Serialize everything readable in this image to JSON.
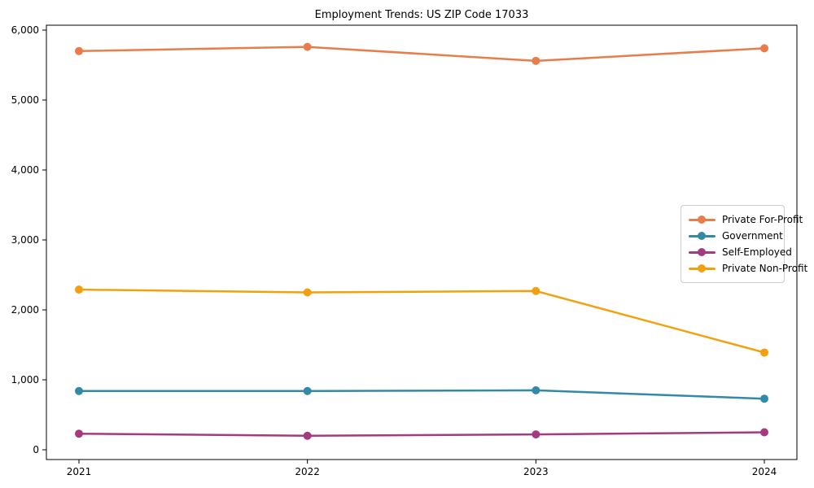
{
  "figure": {
    "title": "Employment Trends: US ZIP Code 17033"
  },
  "chart_data": {
    "type": "line",
    "title": "Employment Trends: US ZIP Code 17033",
    "xlabel": "",
    "ylabel": "",
    "x": [
      2021,
      2022,
      2023,
      2024
    ],
    "x_tick_labels": [
      "2021",
      "2022",
      "2023",
      "2024"
    ],
    "ylim": [
      0,
      6000
    ],
    "yticks": [
      0,
      1000,
      2000,
      3000,
      4000,
      5000,
      6000
    ],
    "ytick_labels": [
      "0",
      "1,000",
      "2,000",
      "3,000",
      "4,000",
      "5,000",
      "6,000"
    ],
    "grid": false,
    "legend_position": "center right",
    "marker": "circle",
    "series": [
      {
        "name": "Private For-Profit",
        "color": "#e87d4b",
        "values": [
          5700,
          5760,
          5560,
          5740
        ]
      },
      {
        "name": "Government",
        "color": "#3389a8",
        "values": [
          840,
          840,
          850,
          730
        ]
      },
      {
        "name": "Self-Employed",
        "color": "#a43b80",
        "values": [
          230,
          200,
          220,
          250
        ]
      },
      {
        "name": "Private Non-Profit",
        "color": "#f2a00e",
        "values": [
          2290,
          2250,
          2270,
          1390
        ]
      }
    ]
  }
}
